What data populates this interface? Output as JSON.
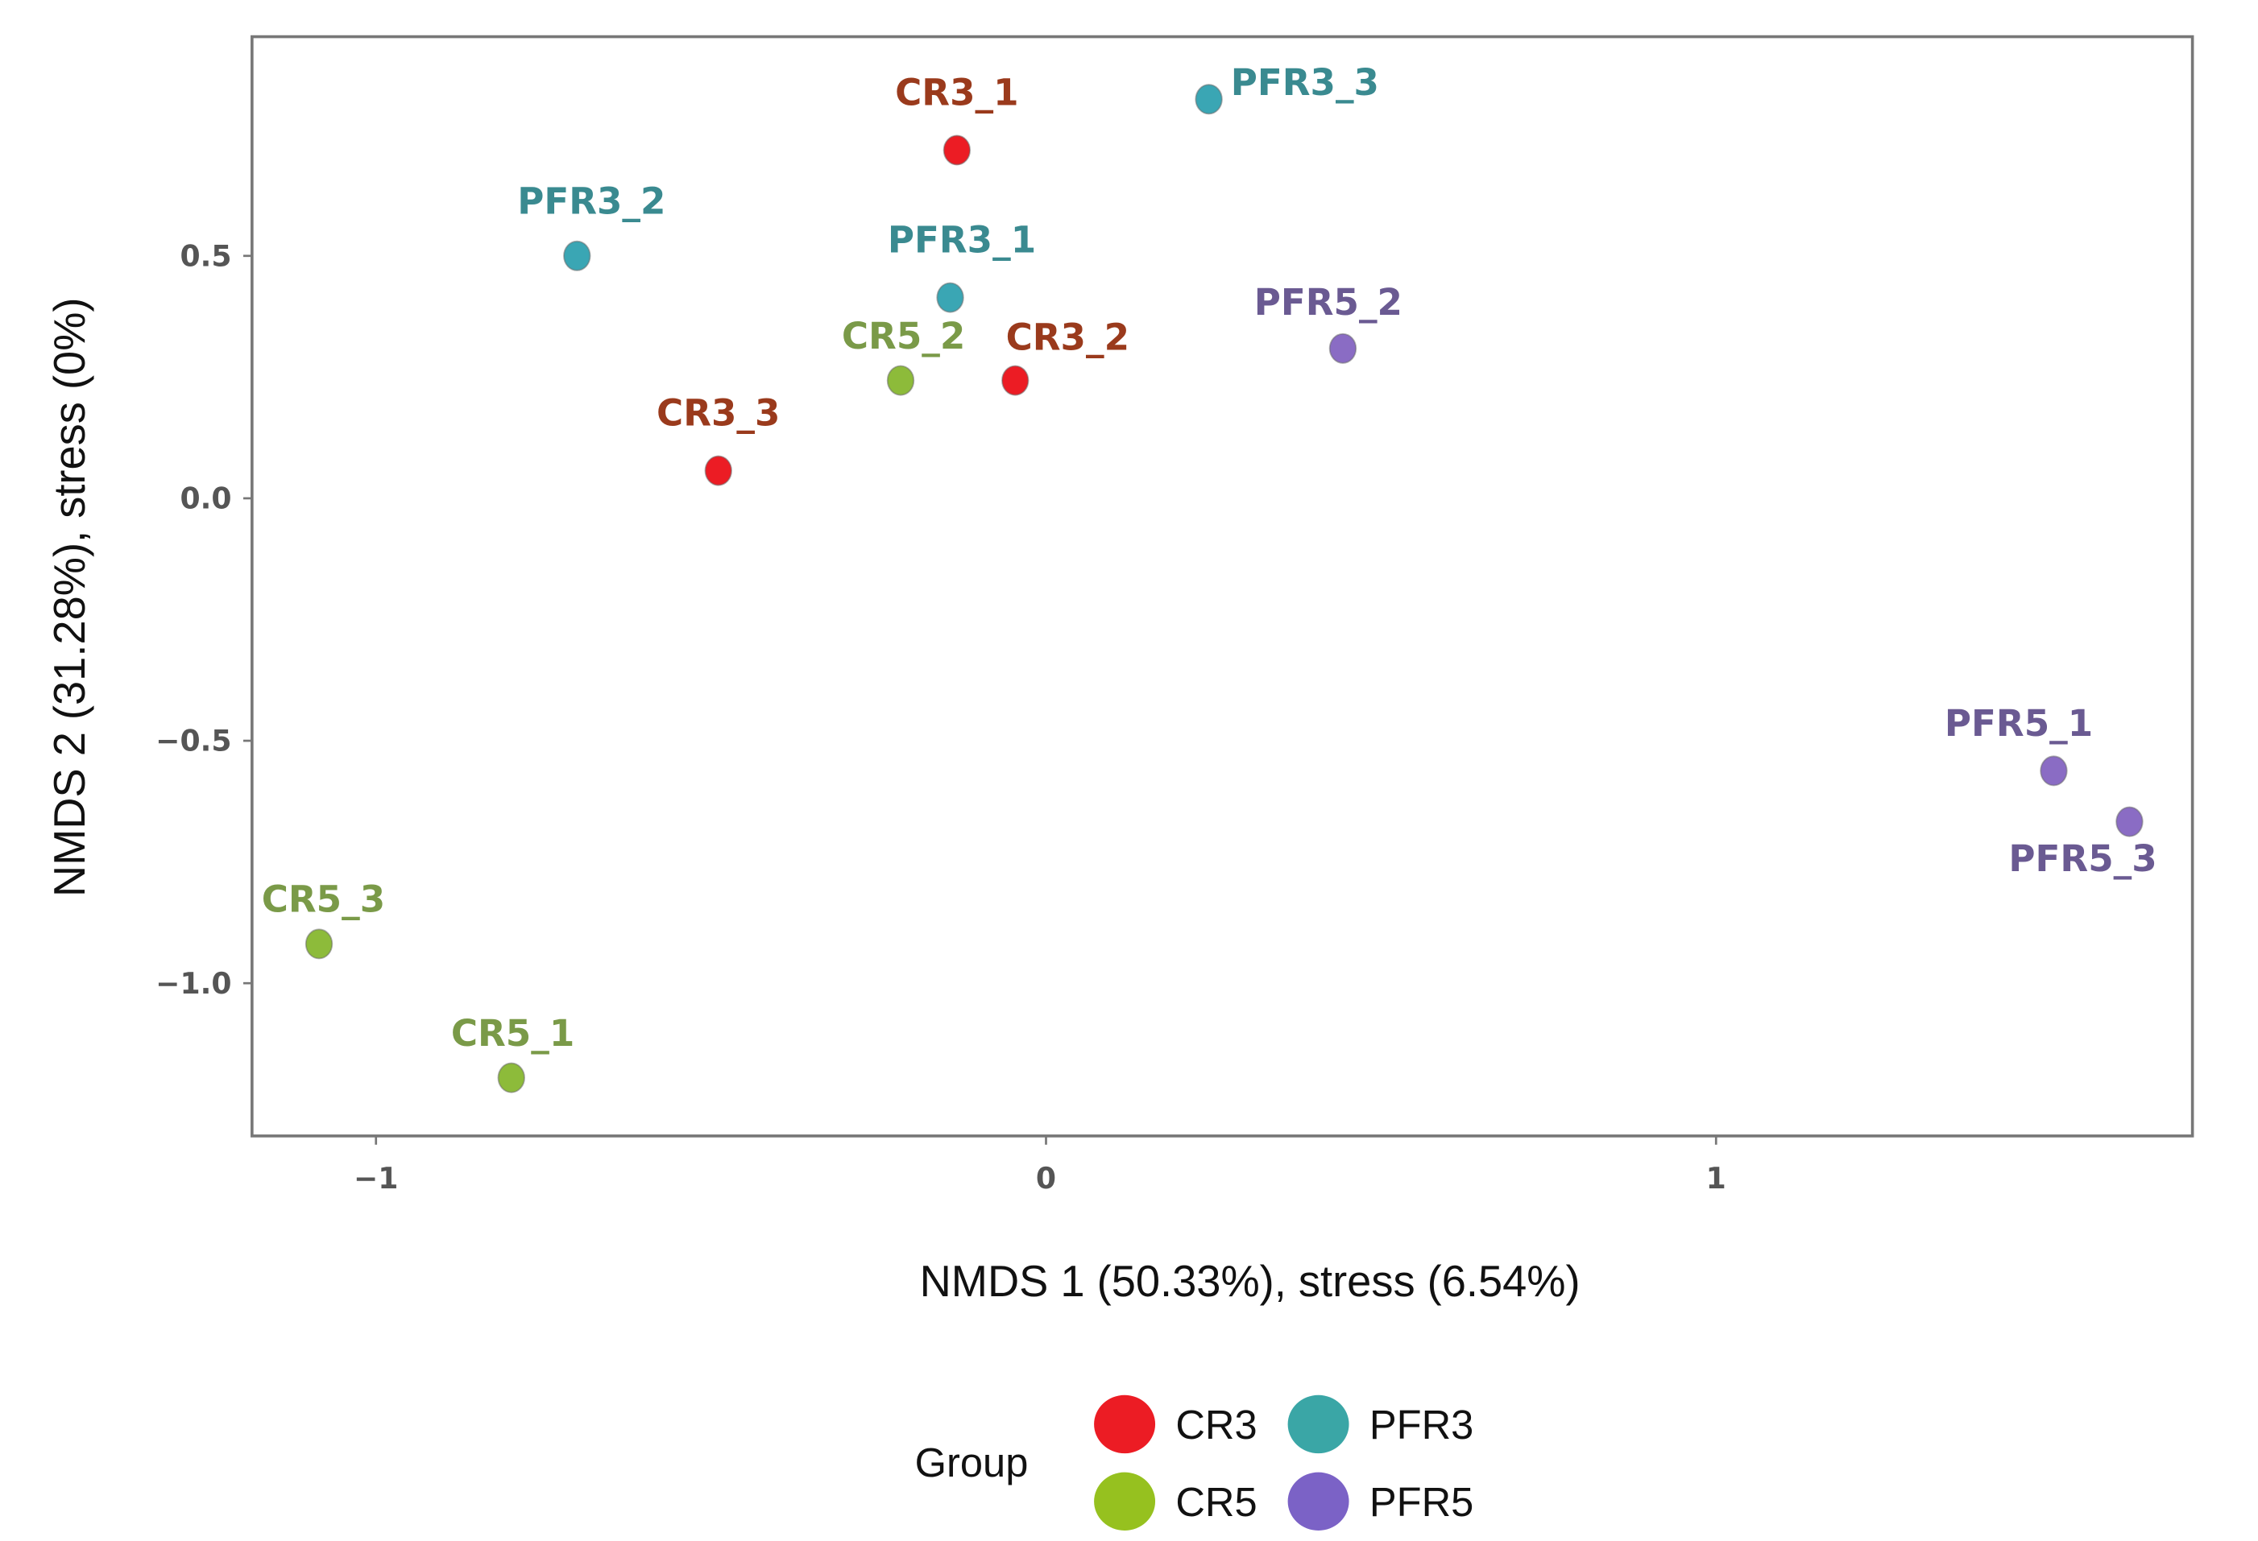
{
  "chart_data": {
    "type": "scatter",
    "title": "",
    "xlabel": "NMDS 1 (50.33%), stress (6.54%)",
    "ylabel": "NMDS 2 (31.28%), stress (0%)",
    "xlim": [
      -1.185,
      1.711
    ],
    "ylim": [
      -1.315,
      0.952
    ],
    "xticks": [
      {
        "v": -1,
        "label": "−1"
      },
      {
        "v": 0,
        "label": "0"
      },
      {
        "v": 1,
        "label": "1"
      }
    ],
    "yticks": [
      {
        "v": 0.5,
        "label": "0.5"
      },
      {
        "v": 0,
        "label": "0.0"
      },
      {
        "v": -0.5,
        "label": "−0.5"
      },
      {
        "v": -1,
        "label": "−1.0"
      }
    ],
    "grid": false,
    "legend": {
      "title": "Group",
      "placement": "bottom",
      "entries": [
        {
          "group": "CR3",
          "label": "CR3"
        },
        {
          "group": "PFR3",
          "label": "PFR3"
        },
        {
          "group": "CR5",
          "label": "CR5"
        },
        {
          "group": "PFR5",
          "label": "PFR5"
        }
      ]
    },
    "colors": {
      "CR3": {
        "point": "#ec1c24",
        "legend": "#ec1c24",
        "text": "#9a3a1c"
      },
      "PFR3": {
        "point": "#3aa6b4",
        "legend": "#3aa6a6",
        "text": "#3a8a90"
      },
      "CR5": {
        "point": "#8dbb3a",
        "legend": "#96c11f",
        "text": "#7a9a48"
      },
      "PFR5": {
        "point": "#8a6cc4",
        "legend": "#7b62c6",
        "text": "#6a5a92"
      }
    },
    "points": [
      {
        "label": "CR3_1",
        "group": "CR3",
        "x": -0.133,
        "y": 0.718
      },
      {
        "label": "CR3_2",
        "group": "CR3",
        "x": -0.046,
        "y": 0.243
      },
      {
        "label": "CR3_3",
        "group": "CR3",
        "x": -0.489,
        "y": 0.057
      },
      {
        "label": "PFR3_1",
        "group": "PFR3",
        "x": -0.143,
        "y": 0.414
      },
      {
        "label": "PFR3_2",
        "group": "PFR3",
        "x": -0.7,
        "y": 0.5
      },
      {
        "label": "PFR3_3",
        "group": "PFR3",
        "x": 0.243,
        "y": 0.823
      },
      {
        "label": "CR5_1",
        "group": "CR5",
        "x": -0.798,
        "y": -1.195
      },
      {
        "label": "CR5_2",
        "group": "CR5",
        "x": -0.217,
        "y": 0.243
      },
      {
        "label": "CR5_3",
        "group": "CR5",
        "x": -1.085,
        "y": -0.919
      },
      {
        "label": "PFR5_1",
        "group": "PFR5",
        "x": 1.504,
        "y": -0.562
      },
      {
        "label": "PFR5_2",
        "group": "PFR5",
        "x": 0.443,
        "y": 0.309
      },
      {
        "label": "PFR5_3",
        "group": "PFR5",
        "x": 1.617,
        "y": -0.667
      }
    ]
  }
}
